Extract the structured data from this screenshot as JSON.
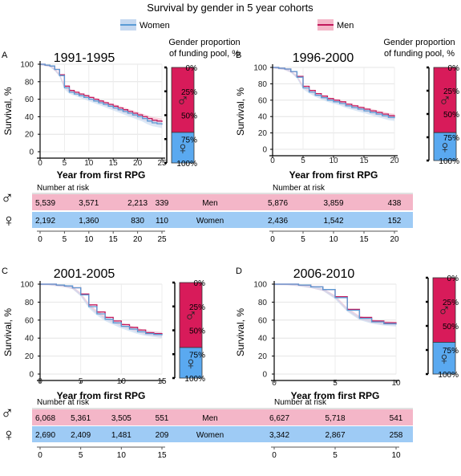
{
  "title": "Survival by gender in 5 year cohorts",
  "legend": {
    "women_label": "Women",
    "men_label": "Men"
  },
  "colors": {
    "women": "#5b9bd5",
    "women_band": "#c5d8f0",
    "men": "#c2185b",
    "men_band": "#f4b6c8",
    "men_bar": "#d81b5a",
    "women_bar": "#5aa9f0",
    "men_row": "#f4b6c8",
    "women_row": "#9ecbf5"
  },
  "gender_axis_title": "Gender proportion of funding pool, %",
  "gender_ticks": [
    "0%",
    "25%",
    "50%",
    "75%",
    "100%"
  ],
  "gender_symbols": {
    "male": "♂",
    "female": "♀"
  },
  "risk_title": "Number at risk",
  "risk_row_labels": {
    "men": "Men",
    "women": "Women"
  },
  "chart_data": [
    {
      "panel": "A",
      "title": "1991-1995",
      "type": "line",
      "xlabel": "Year from first RPG",
      "ylabel": "Survival, %",
      "xlim": [
        0,
        25
      ],
      "ylim": [
        0,
        100
      ],
      "xticks": [
        0,
        5,
        10,
        15,
        20,
        25
      ],
      "yticks": [
        0,
        20,
        40,
        60,
        80,
        100
      ],
      "series": [
        {
          "name": "Men",
          "x": [
            0,
            1,
            2,
            3,
            4,
            5,
            6,
            7,
            8,
            9,
            10,
            11,
            12,
            13,
            14,
            15,
            16,
            17,
            18,
            19,
            20,
            21,
            22,
            23,
            24,
            25
          ],
          "y": [
            100,
            99,
            98,
            94,
            88,
            75,
            70,
            68,
            66,
            64,
            62,
            60,
            58,
            56,
            54,
            52,
            50,
            48,
            46,
            44,
            42,
            40,
            38,
            36,
            35,
            34
          ]
        },
        {
          "name": "Women",
          "x": [
            0,
            1,
            2,
            3,
            4,
            5,
            6,
            7,
            8,
            9,
            10,
            11,
            12,
            13,
            14,
            15,
            16,
            17,
            18,
            19,
            20,
            21,
            22,
            23,
            24,
            25
          ],
          "y": [
            100,
            99,
            98,
            94,
            87,
            73,
            68,
            66,
            64,
            62,
            60,
            58,
            56,
            54,
            52,
            50,
            48,
            46,
            44,
            42,
            40,
            38,
            35,
            33,
            32,
            31
          ]
        }
      ],
      "gender_proportion": {
        "men": 68,
        "women": 32
      },
      "at_risk": {
        "x": [
          0,
          10,
          20,
          25
        ],
        "men": [
          "5,539",
          "3,571",
          "2,213",
          "339"
        ],
        "women": [
          "2,192",
          "1,360",
          "830",
          "110"
        ]
      }
    },
    {
      "panel": "B",
      "title": "1996-2000",
      "type": "line",
      "xlabel": "Year from first RPG",
      "ylabel": "Survival, %",
      "xlim": [
        0,
        20
      ],
      "ylim": [
        0,
        100
      ],
      "xticks": [
        0,
        5,
        10,
        15,
        20
      ],
      "yticks": [
        0,
        20,
        40,
        60,
        80,
        100
      ],
      "series": [
        {
          "name": "Men",
          "x": [
            0,
            1,
            2,
            3,
            4,
            5,
            6,
            7,
            8,
            9,
            10,
            11,
            12,
            13,
            14,
            15,
            16,
            17,
            18,
            19,
            20
          ],
          "y": [
            100,
            99,
            98,
            95,
            89,
            77,
            72,
            68,
            65,
            62,
            60,
            58,
            55,
            53,
            51,
            49,
            47,
            45,
            43,
            41,
            40
          ]
        },
        {
          "name": "Women",
          "x": [
            0,
            1,
            2,
            3,
            4,
            5,
            6,
            7,
            8,
            9,
            10,
            11,
            12,
            13,
            14,
            15,
            16,
            17,
            18,
            19,
            20
          ],
          "y": [
            100,
            99,
            98,
            95,
            88,
            75,
            70,
            66,
            63,
            60,
            58,
            56,
            53,
            51,
            49,
            47,
            45,
            43,
            41,
            39,
            38
          ]
        }
      ],
      "gender_proportion": {
        "men": 70,
        "women": 30
      },
      "at_risk": {
        "x": [
          0,
          10,
          20
        ],
        "men": [
          "5,876",
          "3,859",
          "438"
        ],
        "women": [
          "2,436",
          "1,542",
          "152"
        ]
      }
    },
    {
      "panel": "C",
      "title": "2001-2005",
      "type": "line",
      "xlabel": "Year from first RPG",
      "ylabel": "Survival, %",
      "xlim": [
        0,
        15
      ],
      "ylim": [
        0,
        100
      ],
      "xticks": [
        0,
        5,
        10,
        15
      ],
      "yticks": [
        0,
        20,
        40,
        60,
        80,
        100
      ],
      "series": [
        {
          "name": "Men",
          "x": [
            0,
            1,
            2,
            3,
            4,
            5,
            6,
            7,
            8,
            9,
            10,
            11,
            12,
            13,
            14,
            15
          ],
          "y": [
            100,
            100,
            99,
            98,
            96,
            89,
            77,
            69,
            63,
            59,
            55,
            52,
            49,
            46,
            45,
            44
          ]
        },
        {
          "name": "Women",
          "x": [
            0,
            1,
            2,
            3,
            4,
            5,
            6,
            7,
            8,
            9,
            10,
            11,
            12,
            13,
            14,
            15
          ],
          "y": [
            100,
            100,
            99,
            98,
            96,
            88,
            75,
            67,
            61,
            57,
            53,
            50,
            47,
            45,
            44,
            43
          ]
        }
      ],
      "gender_proportion": {
        "men": 68,
        "women": 32
      },
      "at_risk": {
        "x": [
          0,
          5,
          10,
          15
        ],
        "men": [
          "6,068",
          "5,361",
          "3,505",
          "551"
        ],
        "women": [
          "2,690",
          "2,409",
          "1,481",
          "209"
        ]
      }
    },
    {
      "panel": "D",
      "title": "2006-2010",
      "type": "line",
      "xlabel": "Year from first RPG",
      "ylabel": "Survival, %",
      "xlim": [
        0,
        10
      ],
      "ylim": [
        0,
        100
      ],
      "xticks": [
        0,
        5,
        10
      ],
      "yticks": [
        0,
        20,
        40,
        60,
        80,
        100
      ],
      "series": [
        {
          "name": "Men",
          "x": [
            0,
            1,
            2,
            3,
            4,
            5,
            6,
            7,
            8,
            9,
            10
          ],
          "y": [
            100,
            100,
            99,
            97,
            94,
            86,
            72,
            63,
            59,
            57,
            56
          ]
        },
        {
          "name": "Women",
          "x": [
            0,
            1,
            2,
            3,
            4,
            5,
            6,
            7,
            8,
            9,
            10
          ],
          "y": [
            100,
            100,
            99,
            97,
            94,
            85,
            71,
            62,
            58,
            56,
            55
          ]
        }
      ],
      "gender_proportion": {
        "men": 67,
        "women": 33
      },
      "at_risk": {
        "x": [
          0,
          5,
          10
        ],
        "men": [
          "6,627",
          "5,718",
          "541"
        ],
        "women": [
          "3,342",
          "2,867",
          "258"
        ]
      }
    }
  ]
}
